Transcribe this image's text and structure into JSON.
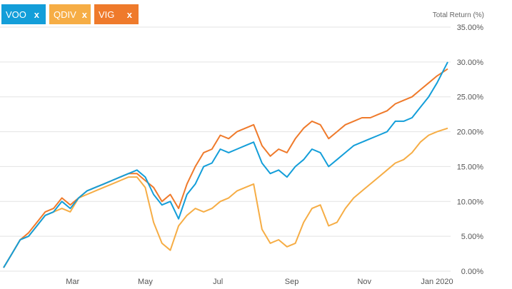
{
  "legend": [
    {
      "name": "VOO",
      "close": "x",
      "color": "#139ed9"
    },
    {
      "name": "QDIV",
      "close": "x",
      "color": "#f6ad45"
    },
    {
      "name": "VIG",
      "close": "x",
      "color": "#ef7a2b"
    }
  ],
  "chart_data": {
    "type": "line",
    "title": "",
    "ylabel": "Total Return (%)",
    "xlabel": "",
    "x_ticks": [
      "Mar",
      "May",
      "Jul",
      "Sep",
      "Nov",
      "Jan 2020"
    ],
    "y_ticks": [
      "0.00%",
      "5.00%",
      "10.00%",
      "15.00%",
      "20.00%",
      "25.00%",
      "30.00%",
      "35.00%"
    ],
    "ylim": [
      0,
      35
    ],
    "xlim": [
      "2019-01-02",
      "2020-01-10"
    ],
    "grid": true,
    "series": [
      {
        "name": "VOO",
        "color": "#139ed9",
        "x": [
          "2019-01-02",
          "2019-01-09",
          "2019-01-16",
          "2019-01-23",
          "2019-01-30",
          "2019-02-06",
          "2019-02-13",
          "2019-02-20",
          "2019-02-27",
          "2019-03-06",
          "2019-03-13",
          "2019-03-20",
          "2019-03-27",
          "2019-04-03",
          "2019-04-10",
          "2019-04-17",
          "2019-04-24",
          "2019-05-01",
          "2019-05-08",
          "2019-05-15",
          "2019-05-22",
          "2019-05-29",
          "2019-06-05",
          "2019-06-12",
          "2019-06-19",
          "2019-06-26",
          "2019-07-03",
          "2019-07-10",
          "2019-07-17",
          "2019-07-24",
          "2019-07-31",
          "2019-08-07",
          "2019-08-14",
          "2019-08-21",
          "2019-08-28",
          "2019-09-04",
          "2019-09-11",
          "2019-09-18",
          "2019-09-25",
          "2019-10-02",
          "2019-10-09",
          "2019-10-16",
          "2019-10-23",
          "2019-10-30",
          "2019-11-06",
          "2019-11-13",
          "2019-11-20",
          "2019-11-27",
          "2019-12-04",
          "2019-12-11",
          "2019-12-18",
          "2019-12-25",
          "2020-01-01",
          "2020-01-10"
        ],
        "values": [
          0.5,
          2.5,
          4.5,
          5.0,
          6.5,
          8.0,
          8.5,
          10.0,
          9.0,
          10.5,
          11.5,
          12.0,
          12.5,
          13.0,
          13.5,
          14.0,
          14.5,
          13.5,
          11.0,
          9.5,
          10.0,
          7.5,
          11.0,
          12.5,
          15.0,
          15.5,
          17.5,
          17.0,
          17.5,
          18.0,
          18.5,
          15.5,
          14.0,
          14.5,
          13.5,
          15.0,
          16.0,
          17.5,
          17.0,
          15.0,
          16.0,
          17.0,
          18.0,
          18.5,
          19.0,
          19.5,
          20.0,
          21.5,
          21.5,
          22.0,
          23.5,
          25.0,
          27.0,
          30.0
        ]
      },
      {
        "name": "QDIV",
        "color": "#f6ad45",
        "x": [
          "2019-01-02",
          "2019-01-09",
          "2019-01-16",
          "2019-01-23",
          "2019-01-30",
          "2019-02-06",
          "2019-02-13",
          "2019-02-20",
          "2019-02-27",
          "2019-03-06",
          "2019-03-13",
          "2019-03-20",
          "2019-03-27",
          "2019-04-03",
          "2019-04-10",
          "2019-04-17",
          "2019-04-24",
          "2019-05-01",
          "2019-05-08",
          "2019-05-15",
          "2019-05-22",
          "2019-05-29",
          "2019-06-05",
          "2019-06-12",
          "2019-06-19",
          "2019-06-26",
          "2019-07-03",
          "2019-07-10",
          "2019-07-17",
          "2019-07-24",
          "2019-07-31",
          "2019-08-07",
          "2019-08-14",
          "2019-08-21",
          "2019-08-28",
          "2019-09-04",
          "2019-09-11",
          "2019-09-18",
          "2019-09-25",
          "2019-10-02",
          "2019-10-09",
          "2019-10-16",
          "2019-10-23",
          "2019-10-30",
          "2019-11-06",
          "2019-11-13",
          "2019-11-20",
          "2019-11-27",
          "2019-12-04",
          "2019-12-11",
          "2019-12-18",
          "2019-12-25",
          "2020-01-01",
          "2020-01-10"
        ],
        "values": [
          0.5,
          2.5,
          4.5,
          5.0,
          6.5,
          8.0,
          8.5,
          9.0,
          8.5,
          10.5,
          11.0,
          11.5,
          12.0,
          12.5,
          13.0,
          13.5,
          13.5,
          12.0,
          7.0,
          4.0,
          3.0,
          6.5,
          8.0,
          9.0,
          8.5,
          9.0,
          10.0,
          10.5,
          11.5,
          12.0,
          12.5,
          6.0,
          4.0,
          4.5,
          3.5,
          4.0,
          7.0,
          9.0,
          9.5,
          6.5,
          7.0,
          9.0,
          10.5,
          11.5,
          12.5,
          13.5,
          14.5,
          15.5,
          16.0,
          17.0,
          18.5,
          19.5,
          20.0,
          20.5
        ]
      },
      {
        "name": "VIG",
        "color": "#ef7a2b",
        "x": [
          "2019-01-02",
          "2019-01-09",
          "2019-01-16",
          "2019-01-23",
          "2019-01-30",
          "2019-02-06",
          "2019-02-13",
          "2019-02-20",
          "2019-02-27",
          "2019-03-06",
          "2019-03-13",
          "2019-03-20",
          "2019-03-27",
          "2019-04-03",
          "2019-04-10",
          "2019-04-17",
          "2019-04-24",
          "2019-05-01",
          "2019-05-08",
          "2019-05-15",
          "2019-05-22",
          "2019-05-29",
          "2019-06-05",
          "2019-06-12",
          "2019-06-19",
          "2019-06-26",
          "2019-07-03",
          "2019-07-10",
          "2019-07-17",
          "2019-07-24",
          "2019-07-31",
          "2019-08-07",
          "2019-08-14",
          "2019-08-21",
          "2019-08-28",
          "2019-09-04",
          "2019-09-11",
          "2019-09-18",
          "2019-09-25",
          "2019-10-02",
          "2019-10-09",
          "2019-10-16",
          "2019-10-23",
          "2019-10-30",
          "2019-11-06",
          "2019-11-13",
          "2019-11-20",
          "2019-11-27",
          "2019-12-04",
          "2019-12-11",
          "2019-12-18",
          "2019-12-25",
          "2020-01-01",
          "2020-01-10"
        ],
        "values": [
          0.5,
          2.5,
          4.5,
          5.5,
          7.0,
          8.5,
          9.0,
          10.5,
          9.5,
          10.5,
          11.5,
          12.0,
          12.5,
          13.0,
          13.5,
          14.0,
          14.0,
          13.0,
          12.0,
          10.0,
          11.0,
          9.0,
          12.5,
          15.0,
          17.0,
          17.5,
          19.5,
          19.0,
          20.0,
          20.5,
          21.0,
          18.0,
          16.5,
          17.5,
          17.0,
          19.0,
          20.5,
          21.5,
          21.0,
          19.0,
          20.0,
          21.0,
          21.5,
          22.0,
          22.0,
          22.5,
          23.0,
          24.0,
          24.5,
          25.0,
          26.0,
          27.0,
          28.0,
          29.0
        ]
      }
    ]
  }
}
